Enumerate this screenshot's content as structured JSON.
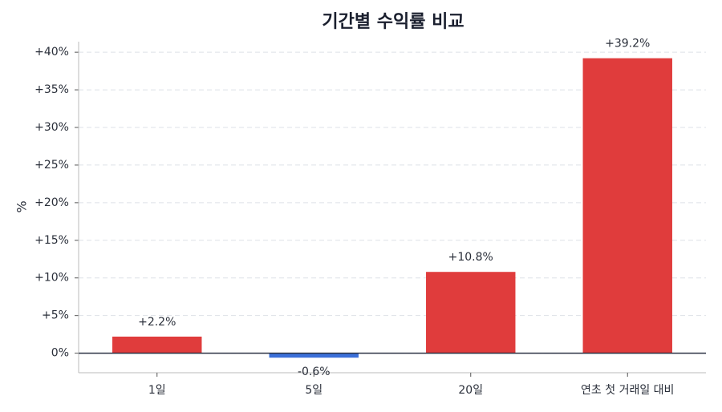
{
  "chart_data": {
    "type": "bar",
    "title": "기간별 수익률 비교",
    "y_label": "%",
    "categories": [
      "1일",
      "5일",
      "20일",
      "연초 첫 거래일 대비"
    ],
    "values": [
      2.2,
      -0.6,
      10.8,
      39.2
    ],
    "value_labels": [
      "+2.2%",
      "-0.6%",
      "+10.8%",
      "+39.2%"
    ],
    "colors": [
      "#e03c3c",
      "#3b6fd9",
      "#e03c3c",
      "#e03c3c"
    ],
    "ylim": [
      -2.6,
      41.4
    ],
    "yticks": [
      {
        "value": 0,
        "label": "0%"
      },
      {
        "value": 5,
        "label": "+5%"
      },
      {
        "value": 10,
        "label": "+10%"
      },
      {
        "value": 15,
        "label": "+15%"
      },
      {
        "value": 20,
        "label": "+20%"
      },
      {
        "value": 25,
        "label": "+25%"
      },
      {
        "value": 30,
        "label": "+30%"
      },
      {
        "value": 35,
        "label": "+35%"
      },
      {
        "value": 40,
        "label": "+40%"
      }
    ],
    "grid": true
  }
}
